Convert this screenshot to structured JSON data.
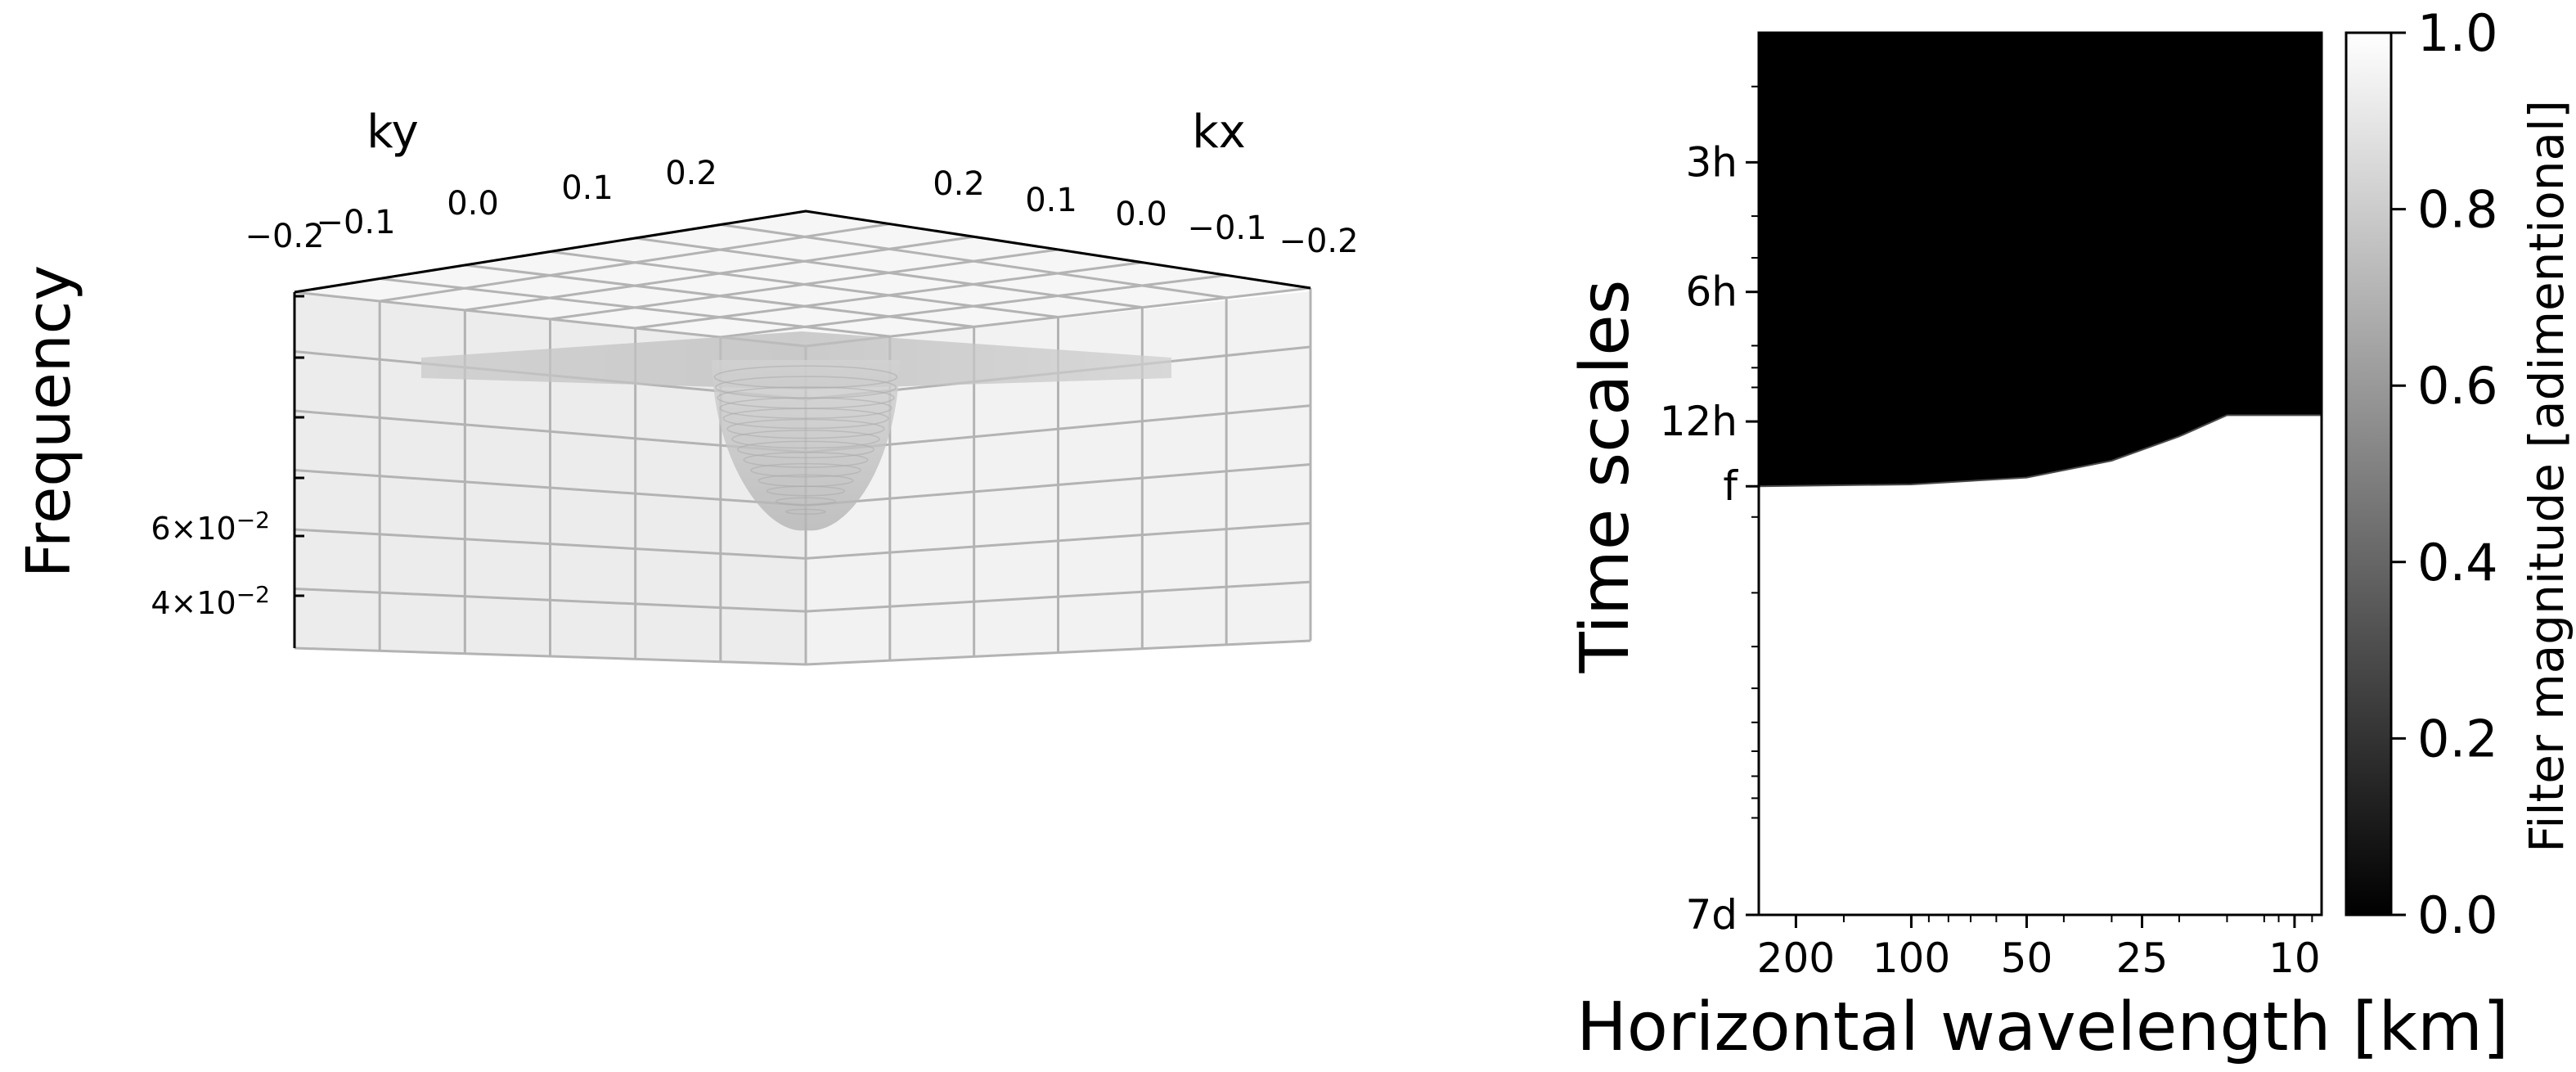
{
  "chart_data": [
    {
      "type": "surface3d",
      "title": "",
      "xlabel": "kx",
      "ylabel": "ky",
      "zlabel": "Frequency",
      "x_ticks": [
        0.2,
        0.1,
        0.0,
        -0.1,
        -0.2
      ],
      "x_tick_labels": [
        "0.2",
        "0.1",
        "0.0",
        "−0.1",
        "−0.2"
      ],
      "y_ticks": [
        -0.2,
        -0.1,
        0.0,
        0.1,
        0.2
      ],
      "y_tick_labels": [
        "−0.2",
        "−0.1",
        "0.0",
        "0.1",
        "0.2"
      ],
      "z_scale": "log",
      "z_ticks": [
        0.06,
        0.04
      ],
      "z_tick_labels": [
        {
          "mantissa": "6",
          "exponent": "−2"
        },
        {
          "mantissa": "4",
          "exponent": "−2"
        }
      ],
      "surface": {
        "shape": "inverted cone (dispersion relation) centered at kx = 0, ky = 0",
        "cap": "flat plane near the top of the frequency axis",
        "colormap": "grayscale",
        "alpha": 0.35
      },
      "grid": true,
      "pane_color": "#f2f2f2"
    },
    {
      "type": "heatmap",
      "title": "",
      "xlabel": "Horizontal wavelength [km]",
      "ylabel": "Time scales",
      "x_scale": "log",
      "x_inverted": true,
      "x_range": [
        250,
        8.5
      ],
      "x_ticks": [
        200,
        100,
        50,
        25,
        10
      ],
      "x_tick_labels": [
        "200",
        "100",
        "50",
        "25",
        "10"
      ],
      "y_scale": "log",
      "y_unit": "hours",
      "y_range": [
        1.5,
        168
      ],
      "y_ticks": [
        3,
        6,
        12,
        16.97,
        168
      ],
      "y_tick_labels": [
        "3h",
        "6h",
        "12h",
        "f",
        "7d"
      ],
      "colormap": "gray",
      "colorbar": {
        "label": "Filter magnitude [adimentional]",
        "ticks": [
          0.0,
          0.2,
          0.4,
          0.6,
          0.8,
          1.0
        ],
        "tick_labels": [
          "0.0",
          "0.2",
          "0.4",
          "0.6",
          "0.8",
          "1.0"
        ],
        "range": [
          0,
          1
        ]
      },
      "boundary": {
        "description": "Filter magnitude is 0 above the boundary (short time scales) and 1 below it (long time scales)",
        "points": [
          {
            "wavelength_km": 250,
            "period_h": 16.97
          },
          {
            "wavelength_km": 100,
            "period_h": 16.8
          },
          {
            "wavelength_km": 50,
            "period_h": 16.2
          },
          {
            "wavelength_km": 30,
            "period_h": 14.8
          },
          {
            "wavelength_km": 20,
            "period_h": 13.0
          },
          {
            "wavelength_km": 15,
            "period_h": 11.6
          },
          {
            "wavelength_km": 8.5,
            "period_h": 11.6
          }
        ]
      }
    }
  ]
}
